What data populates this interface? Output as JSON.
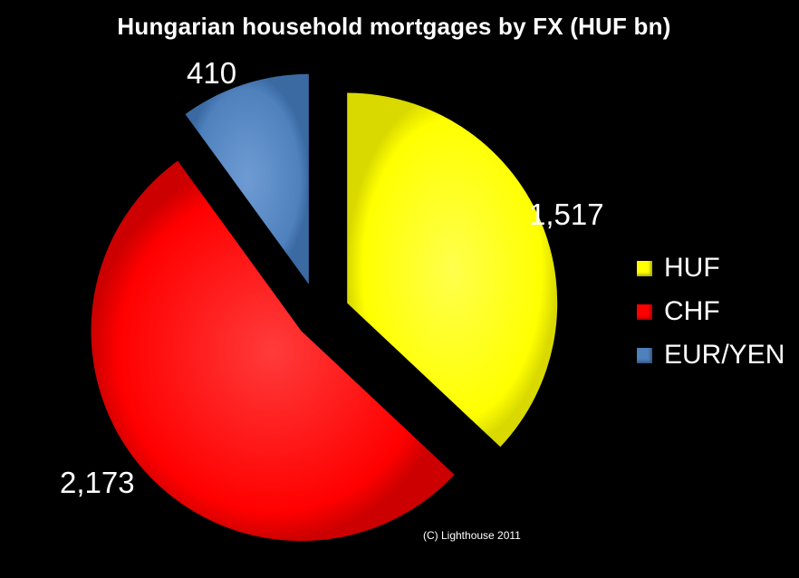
{
  "chart_data": {
    "type": "pie",
    "title": "Hungarian household mortgages by FX (HUF bn)",
    "categories": [
      "HUF",
      "CHF",
      "EUR/YEN"
    ],
    "values": [
      1517,
      2173,
      410
    ],
    "data_labels": [
      "1,517",
      "2,173",
      "410"
    ],
    "colors": [
      "#ffff00",
      "#ff0000",
      "#4f81bd"
    ],
    "exploded": true,
    "legend_position": "right",
    "background": "#000000"
  },
  "footer": {
    "copyright": "(C) Lighthouse  2011"
  }
}
